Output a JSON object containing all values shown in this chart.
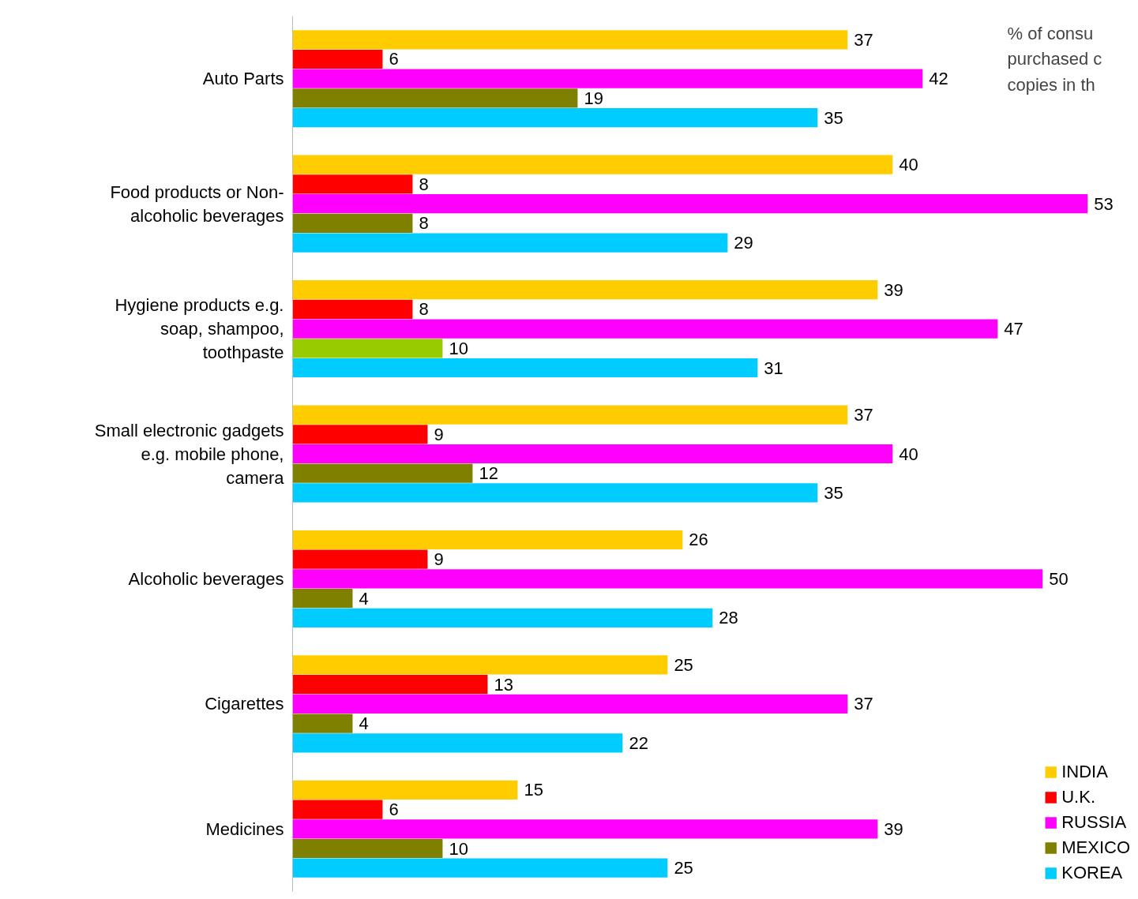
{
  "chart_data": {
    "type": "bar",
    "orientation": "horizontal",
    "data_labels": true,
    "legend": "bottom right",
    "grid": false,
    "annotations": [
      "% of consu\npurchased c\ncopies in th"
    ],
    "categories": [
      "Auto Parts",
      "Food products or Non-alcoholic beverages",
      "Hygiene products e.g. soap, shampoo, toothpaste",
      "Small electronic gadgets e.g. mobile phone, camera",
      "Alcoholic beverages",
      "Cigarettes",
      "Medicines"
    ],
    "series": [
      {
        "name": "INDIA",
        "color": "#ffcc00",
        "values": [
          37,
          40,
          39,
          37,
          26,
          25,
          15
        ]
      },
      {
        "name": "U.K.",
        "color": "#ff0000",
        "values": [
          6,
          8,
          8,
          9,
          9,
          13,
          6
        ]
      },
      {
        "name": "RUSSIA",
        "color": "#ff00ff",
        "values": [
          42,
          53,
          47,
          40,
          50,
          37,
          39
        ]
      },
      {
        "name": "MEXICO",
        "color": "#808000",
        "colors": [
          "#808000",
          "#808000",
          "#99cc00",
          "#808000",
          "#808000",
          "#808000",
          "#808000"
        ],
        "values": [
          19,
          8,
          10,
          12,
          4,
          4,
          10
        ]
      },
      {
        "name": "KOREA",
        "color": "#00ccff",
        "values": [
          35,
          29,
          31,
          35,
          28,
          22,
          25
        ]
      }
    ]
  }
}
